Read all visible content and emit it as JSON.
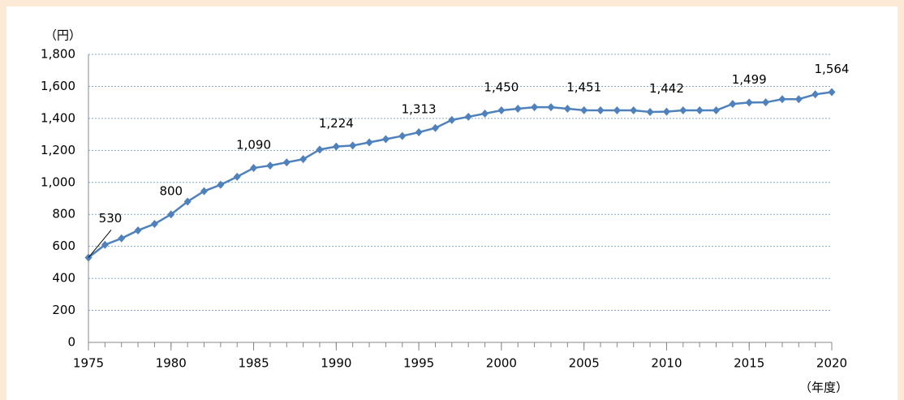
{
  "chart_data": {
    "type": "line",
    "y_axis_label": "（円）",
    "x_axis_label": "（年度）",
    "x": [
      1975,
      1976,
      1977,
      1978,
      1979,
      1980,
      1981,
      1982,
      1983,
      1984,
      1985,
      1986,
      1987,
      1988,
      1989,
      1990,
      1991,
      1992,
      1993,
      1994,
      1995,
      1996,
      1997,
      1998,
      1999,
      2000,
      2001,
      2002,
      2003,
      2004,
      2005,
      2006,
      2007,
      2008,
      2009,
      2010,
      2011,
      2012,
      2013,
      2014,
      2015,
      2016,
      2017,
      2018,
      2019,
      2020
    ],
    "series": [
      {
        "color": "#4f81bd",
        "values": [
          530,
          610,
          650,
          700,
          740,
          800,
          880,
          945,
          985,
          1035,
          1090,
          1105,
          1125,
          1145,
          1205,
          1224,
          1230,
          1250,
          1270,
          1290,
          1313,
          1340,
          1390,
          1410,
          1430,
          1450,
          1460,
          1470,
          1470,
          1460,
          1451,
          1450,
          1450,
          1450,
          1440,
          1442,
          1450,
          1450,
          1450,
          1490,
          1499,
          1500,
          1520,
          1520,
          1550,
          1564
        ],
        "value_labels": [
          "530",
          null,
          null,
          null,
          null,
          "800",
          null,
          null,
          null,
          null,
          "1,090",
          null,
          null,
          null,
          null,
          "1,224",
          null,
          null,
          null,
          null,
          "1,313",
          null,
          null,
          null,
          null,
          "1,450",
          null,
          null,
          null,
          null,
          "1,451",
          null,
          null,
          null,
          null,
          "1,442",
          null,
          null,
          null,
          null,
          "1,499",
          null,
          null,
          null,
          null,
          "1,564"
        ]
      }
    ],
    "xlim": [
      1975,
      2020
    ],
    "xticks": [
      1975,
      1980,
      1985,
      1990,
      1995,
      2000,
      2005,
      2010,
      2015,
      2020
    ],
    "ylim": [
      0,
      1800
    ],
    "yticks": [
      0,
      200,
      400,
      600,
      800,
      {
        "value": 1000,
        "label": "1,000"
      },
      {
        "value": 1200,
        "label": "1,200"
      },
      {
        "value": 1400,
        "label": "1,400"
      },
      {
        "value": 1600,
        "label": "1,600"
      },
      {
        "value": 1800,
        "label": "1,800"
      }
    ],
    "grid": true
  }
}
